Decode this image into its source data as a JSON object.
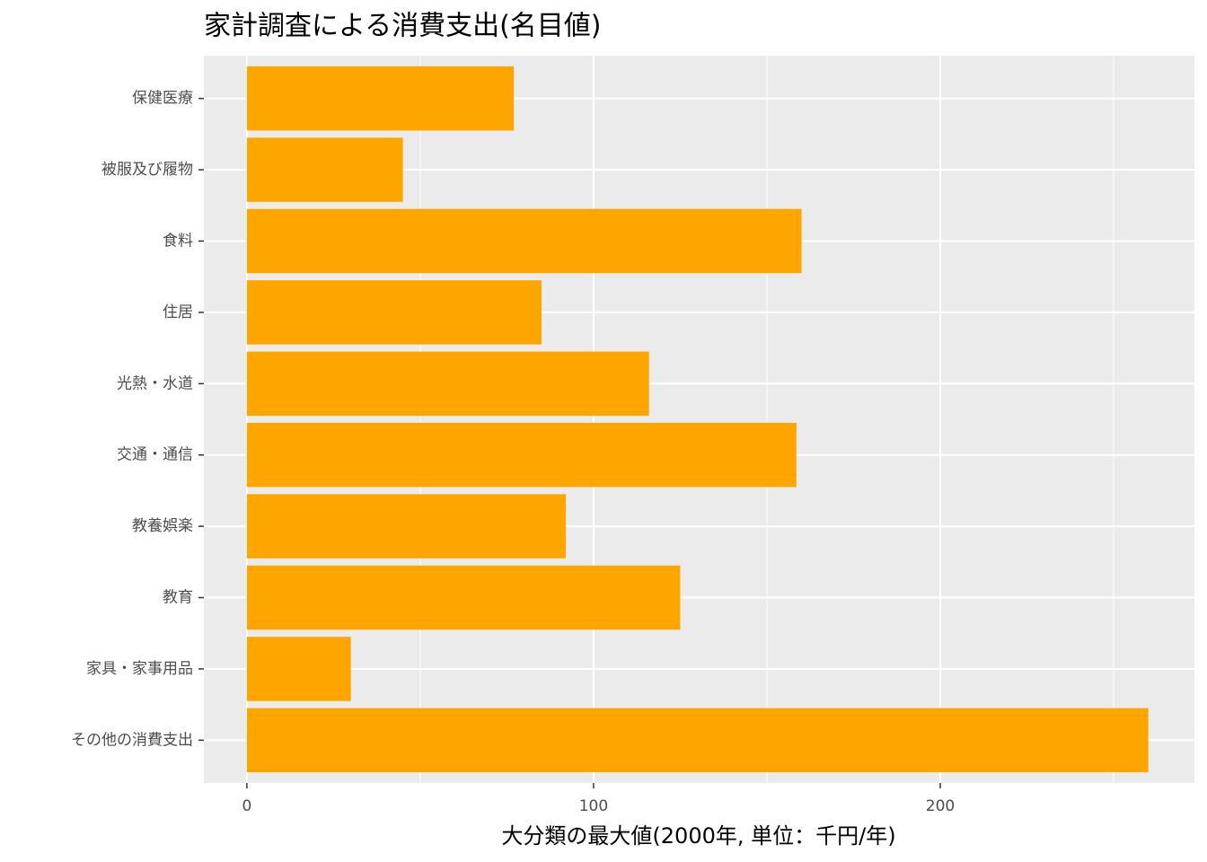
{
  "chart_data": {
    "type": "barh",
    "title": "家計調査による消費支出(名目値)",
    "categories": [
      "保健医療",
      "被服及び履物",
      "食料",
      "住居",
      "光熱・水道",
      "交通・通信",
      "教養娯楽",
      "教育",
      "家具・家事用品",
      "その他の消費支出"
    ],
    "values": [
      77,
      45,
      160,
      85,
      116,
      158.5,
      92,
      125,
      30,
      260
    ],
    "color": "#ffa500",
    "xlabel": "大分類の最大値(2000年, 単位：千円/年)",
    "xlim": [
      -12.4,
      273.3
    ],
    "xticks": [
      0,
      100,
      200
    ],
    "xminorticks": [
      50,
      150,
      250
    ],
    "grid": true
  }
}
